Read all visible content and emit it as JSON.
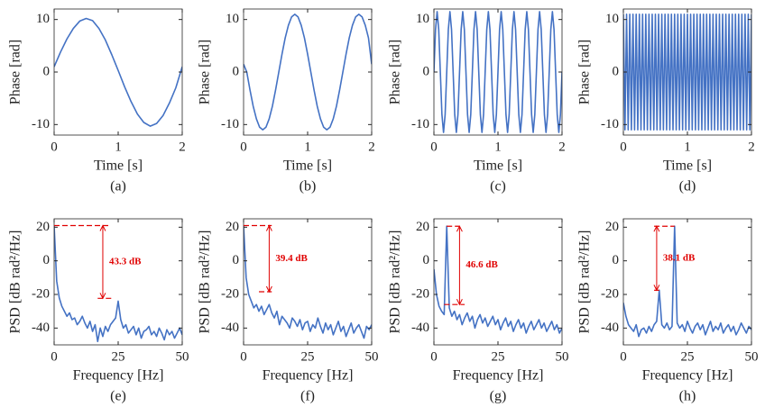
{
  "chart_data": [
    {
      "type": "line",
      "caption": "(a)",
      "xlabel": "Time [s]",
      "ylabel": "Phase [rad]",
      "color": "#4472c4",
      "xlim": [
        0,
        2
      ],
      "xticks": [
        0,
        1,
        2
      ],
      "ylim": [
        -12,
        12
      ],
      "yticks": [
        -10,
        0,
        10
      ],
      "x": [
        0,
        0.1,
        0.2,
        0.3,
        0.4,
        0.5,
        0.6,
        0.7,
        0.8,
        0.9,
        1,
        1.1,
        1.2,
        1.3,
        1.4,
        1.5,
        1.6,
        1.7,
        1.8,
        1.9,
        2
      ],
      "values": [
        1,
        3.8,
        6.3,
        8.3,
        9.7,
        10.2,
        9.8,
        8.3,
        6.1,
        3.3,
        0.3,
        -2.8,
        -5.6,
        -8.0,
        -9.6,
        -10.3,
        -9.8,
        -8.3,
        -5.9,
        -3.0,
        1
      ]
    },
    {
      "type": "line",
      "caption": "(b)",
      "xlabel": "Time [s]",
      "ylabel": "Phase [rad]",
      "color": "#4472c4",
      "xlim": [
        0,
        2
      ],
      "xticks": [
        0,
        1,
        2
      ],
      "ylim": [
        -12,
        12
      ],
      "yticks": [
        -10,
        0,
        10
      ],
      "x": [
        0,
        0.05,
        0.1,
        0.15,
        0.2,
        0.25,
        0.3,
        0.35,
        0.4,
        0.45,
        0.5,
        0.55,
        0.6,
        0.65,
        0.7,
        0.75,
        0.8,
        0.85,
        0.9,
        0.95,
        1,
        1.05,
        1.1,
        1.15,
        1.2,
        1.25,
        1.3,
        1.35,
        1.4,
        1.45,
        1.5,
        1.55,
        1.6,
        1.65,
        1.7,
        1.75,
        1.8,
        1.85,
        1.9,
        1.95,
        2
      ],
      "values": [
        1.5,
        0,
        -3.4,
        -6.5,
        -8.9,
        -10.5,
        -11,
        -10.5,
        -8.9,
        -6.5,
        -3.4,
        0,
        3.4,
        6.5,
        8.9,
        10.5,
        11,
        10.5,
        8.9,
        6.5,
        3.4,
        0,
        -3.4,
        -6.5,
        -8.9,
        -10.5,
        -11,
        -10.5,
        -8.9,
        -6.5,
        -3.4,
        0,
        3.4,
        6.5,
        8.9,
        10.5,
        11,
        10.5,
        8.9,
        6.5,
        1.5
      ]
    },
    {
      "type": "line",
      "caption": "(c)",
      "xlabel": "Time [s]",
      "ylabel": "Phase [rad]",
      "color": "#4472c4",
      "xlim": [
        0,
        2
      ],
      "xticks": [
        0,
        1,
        2
      ],
      "ylim": [
        -12,
        12
      ],
      "yticks": [
        -10,
        0,
        10
      ],
      "x": [
        0,
        0.025,
        0.05,
        0.075,
        0.1,
        0.125,
        0.15,
        0.175,
        0.2,
        0.225,
        0.25,
        0.275,
        0.3,
        0.325,
        0.35,
        0.375,
        0.4,
        0.425,
        0.45,
        0.475,
        0.5,
        0.525,
        0.55,
        0.575,
        0.6,
        0.625,
        0.65,
        0.675,
        0.7,
        0.725,
        0.75,
        0.775,
        0.8,
        0.825,
        0.85,
        0.875,
        0.9,
        0.925,
        0.95,
        0.975,
        1,
        1.025,
        1.05,
        1.075,
        1.1,
        1.125,
        1.15,
        1.175,
        1.2,
        1.225,
        1.25,
        1.275,
        1.3,
        1.325,
        1.35,
        1.375,
        1.4,
        1.425,
        1.45,
        1.475,
        1.5,
        1.525,
        1.55,
        1.575,
        1.6,
        1.625,
        1.65,
        1.675,
        1.7,
        1.725,
        1.75,
        1.775,
        1.8,
        1.825,
        1.85,
        1.875,
        1.9,
        1.925,
        1.95,
        1.975,
        2
      ],
      "values": [
        0,
        8.1,
        11.5,
        8.1,
        0,
        -8.1,
        -11.5,
        -8.1,
        0,
        8.1,
        11.5,
        8.1,
        0,
        -8.1,
        -11.5,
        -8.1,
        0,
        8.1,
        11.5,
        8.1,
        0,
        -8.1,
        -11.5,
        -8.1,
        0,
        8.1,
        11.5,
        8.1,
        0,
        -8.1,
        -11.5,
        -8.1,
        0,
        8.1,
        11.5,
        8.1,
        0,
        -8.1,
        -11.5,
        -8.1,
        0,
        8.1,
        11.5,
        8.1,
        0,
        -8.1,
        -11.5,
        -8.1,
        0,
        8.1,
        11.5,
        8.1,
        0,
        -8.1,
        -11.5,
        -8.1,
        0,
        8.1,
        11.5,
        8.1,
        0,
        -8.1,
        -11.5,
        -8.1,
        0,
        8.1,
        11.5,
        8.1,
        0,
        -8.1,
        -11.5,
        -8.1,
        0,
        8.1,
        11.5,
        8.1,
        0,
        -8.1,
        -11.5,
        -8.1,
        0
      ]
    },
    {
      "type": "line",
      "caption": "(d)",
      "xlabel": "Time [s]",
      "ylabel": "Phase [rad]",
      "color": "#4472c4",
      "xlim": [
        0,
        2
      ],
      "xticks": [
        0,
        1,
        2
      ],
      "ylim": [
        -12,
        12
      ],
      "yticks": [
        -10,
        0,
        10
      ],
      "x": [
        0,
        0.025,
        0.05,
        0.075,
        0.1,
        0.125,
        0.15,
        0.175,
        0.2,
        0.225,
        0.25,
        0.275,
        0.3,
        0.325,
        0.35,
        0.375,
        0.4,
        0.425,
        0.45,
        0.475,
        0.5,
        0.525,
        0.55,
        0.575,
        0.6,
        0.625,
        0.65,
        0.675,
        0.7,
        0.725,
        0.75,
        0.775,
        0.8,
        0.825,
        0.85,
        0.875,
        0.9,
        0.925,
        0.95,
        0.975,
        1,
        1.025,
        1.05,
        1.075,
        1.1,
        1.125,
        1.15,
        1.175,
        1.2,
        1.225,
        1.25,
        1.275,
        1.3,
        1.325,
        1.35,
        1.375,
        1.4,
        1.425,
        1.45,
        1.475,
        1.5,
        1.525,
        1.55,
        1.575,
        1.6,
        1.625,
        1.65,
        1.675,
        1.7,
        1.725,
        1.75,
        1.775,
        1.8,
        1.825,
        1.85,
        1.875,
        1.9,
        1.925,
        1.95,
        1.975,
        2
      ],
      "values": [
        11,
        -11,
        11,
        -11,
        11,
        -11,
        11,
        -11,
        11,
        -11,
        11,
        -11,
        11,
        -11,
        11,
        -11,
        11,
        -11,
        11,
        -11,
        11,
        -11,
        11,
        -11,
        11,
        -11,
        11,
        -11,
        11,
        -11,
        11,
        -11,
        11,
        -11,
        11,
        -11,
        11,
        -11,
        11,
        -11,
        11,
        -11,
        11,
        -11,
        11,
        -11,
        11,
        -11,
        11,
        -11,
        11,
        -11,
        11,
        -11,
        11,
        -11,
        11,
        -11,
        11,
        -11,
        11,
        -11,
        11,
        -11,
        11,
        -11,
        11,
        -11,
        11,
        -11,
        11,
        -11,
        11,
        -11,
        11,
        -11,
        11,
        -11,
        11,
        -11,
        11
      ]
    },
    {
      "type": "line",
      "caption": "(e)",
      "xlabel": "Frequency [Hz]",
      "ylabel": "PSD [dB rad²/Hz]",
      "color": "#4472c4",
      "xlim": [
        0,
        50
      ],
      "xticks": [
        0,
        25,
        50
      ],
      "ylim": [
        -50,
        25
      ],
      "yticks": [
        -40,
        -20,
        0,
        20
      ],
      "annotation": "43.3 dB",
      "annotation_levels": [
        21,
        -22.3
      ],
      "x": [
        0,
        1,
        2,
        3,
        4,
        5,
        6,
        7,
        8,
        9,
        10,
        11,
        12,
        13,
        14,
        15,
        16,
        17,
        18,
        19,
        20,
        21,
        22,
        23,
        24,
        25,
        26,
        27,
        28,
        29,
        30,
        31,
        32,
        33,
        34,
        35,
        36,
        37,
        38,
        39,
        40,
        41,
        42,
        43,
        44,
        45,
        46,
        47,
        48,
        49,
        50
      ],
      "values": [
        21,
        -12,
        -22,
        -27,
        -30,
        -33,
        -31,
        -35,
        -34,
        -38,
        -36,
        -33,
        -37,
        -40,
        -36,
        -42,
        -38,
        -48,
        -40,
        -45,
        -39,
        -42,
        -38,
        -36,
        -34,
        -24,
        -35,
        -40,
        -38,
        -43,
        -41,
        -39,
        -44,
        -40,
        -46,
        -42,
        -41,
        -39,
        -44,
        -42,
        -45,
        -40,
        -43,
        -47,
        -41,
        -44,
        -42,
        -46,
        -43,
        -40,
        -44
      ]
    },
    {
      "type": "line",
      "caption": "(f)",
      "xlabel": "Frequency [Hz]",
      "ylabel": "PSD [dB rad²/Hz]",
      "color": "#4472c4",
      "xlim": [
        0,
        50
      ],
      "xticks": [
        0,
        25,
        50
      ],
      "ylim": [
        -50,
        25
      ],
      "yticks": [
        -40,
        -20,
        0,
        20
      ],
      "annotation": "39.4 dB",
      "annotation_levels": [
        21,
        -18.4
      ],
      "x": [
        0,
        1,
        2,
        3,
        4,
        5,
        6,
        7,
        8,
        9,
        10,
        11,
        12,
        13,
        14,
        15,
        16,
        17,
        18,
        19,
        20,
        21,
        22,
        23,
        24,
        25,
        26,
        27,
        28,
        29,
        30,
        31,
        32,
        33,
        34,
        35,
        36,
        37,
        38,
        39,
        40,
        41,
        42,
        43,
        44,
        45,
        46,
        47,
        48,
        49,
        50
      ],
      "values": [
        21,
        -10,
        -20,
        -24,
        -28,
        -26,
        -30,
        -27,
        -32,
        -29,
        -26,
        -31,
        -34,
        -30,
        -38,
        -33,
        -35,
        -37,
        -40,
        -34,
        -36,
        -39,
        -35,
        -41,
        -37,
        -36,
        -42,
        -38,
        -40,
        -34,
        -39,
        -43,
        -37,
        -41,
        -38,
        -44,
        -40,
        -36,
        -42,
        -39,
        -45,
        -41,
        -37,
        -43,
        -40,
        -38,
        -42,
        -46,
        -39,
        -41,
        -38
      ]
    },
    {
      "type": "line",
      "caption": "(g)",
      "xlabel": "Frequency [Hz]",
      "ylabel": "PSD [dB rad²/Hz]",
      "color": "#4472c4",
      "xlim": [
        0,
        50
      ],
      "xticks": [
        0,
        25,
        50
      ],
      "ylim": [
        -50,
        25
      ],
      "yticks": [
        -40,
        -20,
        0,
        20
      ],
      "annotation": "46.6 dB",
      "annotation_levels": [
        20.6,
        -26
      ],
      "x": [
        0,
        1,
        2,
        3,
        4,
        5,
        6,
        7,
        8,
        9,
        10,
        11,
        12,
        13,
        14,
        15,
        16,
        17,
        18,
        19,
        20,
        21,
        22,
        23,
        24,
        25,
        26,
        27,
        28,
        29,
        30,
        31,
        32,
        33,
        34,
        35,
        36,
        37,
        38,
        39,
        40,
        41,
        42,
        43,
        44,
        45,
        46,
        47,
        48,
        49,
        50
      ],
      "values": [
        -5,
        -20,
        -27,
        -30,
        -32,
        20.6,
        -28,
        -33,
        -30,
        -35,
        -32,
        -38,
        -34,
        -31,
        -36,
        -33,
        -40,
        -35,
        -32,
        -37,
        -34,
        -39,
        -36,
        -33,
        -38,
        -35,
        -41,
        -37,
        -34,
        -39,
        -36,
        -42,
        -38,
        -35,
        -40,
        -37,
        -43,
        -39,
        -36,
        -41,
        -38,
        -35,
        -40,
        -37,
        -42,
        -39,
        -36,
        -41,
        -38,
        -43,
        -40
      ]
    },
    {
      "type": "line",
      "caption": "(h)",
      "xlabel": "Frequency [Hz]",
      "ylabel": "PSD [dB rad²/Hz]",
      "color": "#4472c4",
      "xlim": [
        0,
        50
      ],
      "xticks": [
        0,
        25,
        50
      ],
      "ylim": [
        -50,
        25
      ],
      "yticks": [
        -40,
        -20,
        0,
        20
      ],
      "annotation": "38.1 dB",
      "annotation_levels": [
        20.6,
        -17.5
      ],
      "x": [
        0,
        1,
        2,
        3,
        4,
        5,
        6,
        7,
        8,
        9,
        10,
        11,
        12,
        13,
        14,
        15,
        16,
        17,
        18,
        19,
        20,
        21,
        22,
        23,
        24,
        25,
        26,
        27,
        28,
        29,
        30,
        31,
        32,
        33,
        34,
        35,
        36,
        37,
        38,
        39,
        40,
        41,
        42,
        43,
        44,
        45,
        46,
        47,
        48,
        49,
        50
      ],
      "values": [
        -25,
        -33,
        -38,
        -40,
        -42,
        -38,
        -45,
        -41,
        -40,
        -43,
        -39,
        -42,
        -38,
        -36,
        -17.5,
        -38,
        -40,
        -37,
        -41,
        -39,
        20.6,
        -37,
        -40,
        -38,
        -42,
        -36,
        -40,
        -43,
        -39,
        -37,
        -41,
        -38,
        -44,
        -40,
        -36,
        -42,
        -39,
        -41,
        -37,
        -43,
        -40,
        -38,
        -42,
        -39,
        -44,
        -41,
        -37,
        -40,
        -43,
        -39,
        -41
      ]
    }
  ]
}
